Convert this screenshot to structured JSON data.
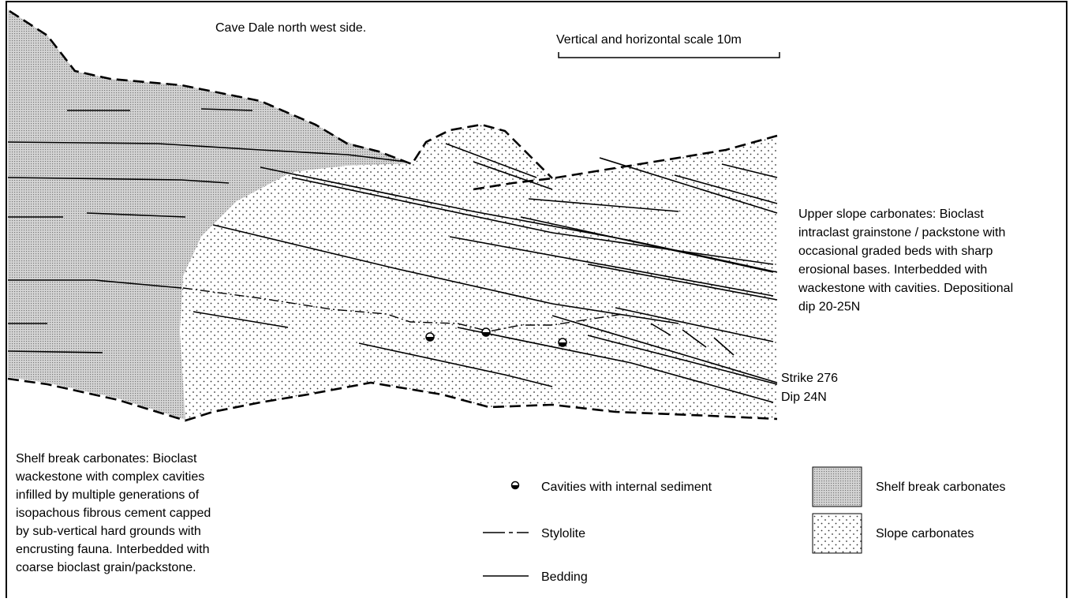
{
  "title": "Cave Dale north west side.",
  "scale_label": "Vertical and horizontal scale 10m",
  "annotations": {
    "upper_slope": [
      "Upper slope carbonates: Bioclast",
      "intraclast grainstone / packstone with",
      "occasional graded beds with sharp",
      "erosional bases. Interbedded with",
      "wackestone with cavities. Depositional",
      "dip 20-25N"
    ],
    "strike": "Strike 276",
    "dip": "Dip 24N",
    "shelf_break": [
      "Shelf break carbonates: Bioclast",
      "wackestone with complex cavities",
      "infilled by multiple generations of",
      "isopachous fibrous cement capped",
      "by sub-vertical hard grounds with",
      "encrusting fauna. Interbedded with",
      "coarse bioclast grain/packstone."
    ]
  },
  "legend": [
    {
      "label": "Cavities with internal sediment"
    },
    {
      "label": "Stylolite"
    },
    {
      "label": "Bedding"
    },
    {
      "label": "Shelf break carbonates"
    },
    {
      "label": "Slope carbonates"
    }
  ]
}
